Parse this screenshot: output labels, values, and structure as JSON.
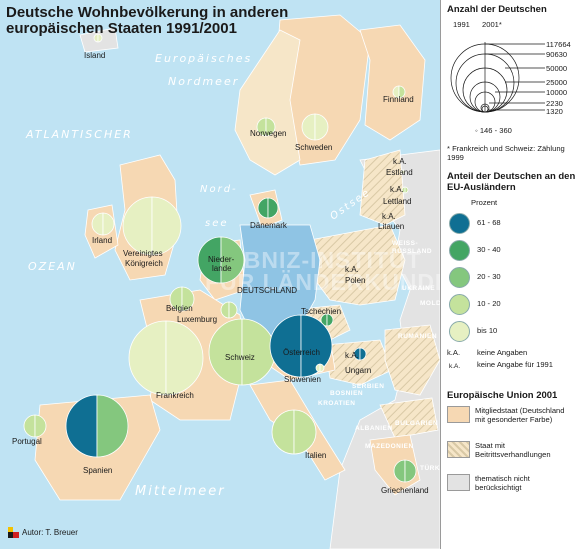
{
  "title": "Deutsche Wohnbevölkerung in anderen europäischen Staaten 1991/2001",
  "seas": {
    "europ": "Europäisches",
    "nordmeer": "Nordmeer",
    "atlant": "ATLANTISCHER",
    "ozean": "OZEAN",
    "nordsee1": "Nord-",
    "nordsee2": "see",
    "ostsee": "Ostsee",
    "mittel": "Mittelmeer"
  },
  "watermark": {
    "line1": "LEIBNIZ-INSTITUT",
    "line2": "FÜR LÄNDERKUNDE"
  },
  "countries": {
    "island": "Island",
    "norwegen": "Norwegen",
    "schweden": "Schweden",
    "finnland": "Finnland",
    "estland": "Estland",
    "lettland": "Lettland",
    "litauen": "Litauen",
    "daenemark": "Dänemark",
    "irland": "Irland",
    "uk": "Vereinigtes Königreich",
    "niederlande": "Nieder-lande",
    "deutschland": "DEUTSCHLAND",
    "polen": "Polen",
    "belgien": "Belgien",
    "luxemburg": "Luxemburg",
    "tschechien": "Tschechien",
    "frankreich": "Frankreich",
    "schweiz": "Schweiz",
    "oesterreich": "Österreich",
    "slowenien": "Slowenien",
    "ungarn": "Ungarn",
    "portugal": "Portugal",
    "spanien": "Spanien",
    "italien": "Italien",
    "griechenland": "Griechenland",
    "ka": "k.A."
  },
  "minor_labels": [
    "WEISS-",
    "RUSSLAND",
    "UKRAINE",
    "RUMÄNIEN",
    "SERBIEN",
    "BOSNIEN",
    "KROATIEN",
    "MOLDAU",
    "BULGARIEN",
    "ALBANIEN",
    "MAZEDONIEN",
    "TÜRKEI"
  ],
  "legend": {
    "anzahl_title": "Anzahl der Deutschen",
    "years": [
      "1991",
      "2001*"
    ],
    "size_values": [
      "117664",
      "90630",
      "50000",
      "25000",
      "10000",
      "2230",
      "1320"
    ],
    "small_range": "146 - 360",
    "footnote": "* Frankreich und Schweiz: Zählung 1999",
    "anteil_title": "Anteil der Deutschen an den EU-Ausländern",
    "prozent": "Prozent",
    "classes": [
      {
        "label": "61 - 68",
        "color": "#0f6f93"
      },
      {
        "label": "30 - 40",
        "color": "#43a564"
      },
      {
        "label": "20 - 30",
        "color": "#84c77e"
      },
      {
        "label": "10 - 20",
        "color": "#c4e29c"
      },
      {
        "label": "bis 10",
        "color": "#e6f0c2"
      }
    ],
    "ka_label": "k.A.",
    "ka_text": "keine Angaben",
    "ka_small": "k.A.",
    "ka_small_text": "keine Angabe für 1991",
    "eu_title": "Europäische Union 2001",
    "eu_items": [
      {
        "label": "Mitgliedstaat (Deutschland mit gesonderter Farbe)",
        "color": "#f6d8b3"
      },
      {
        "label": "Staat mit Beitrittsverhandlungen",
        "color": "#f6e6c8"
      },
      {
        "label": "thematisch nicht berücksichtigt",
        "color": "#e3e3e3"
      }
    ]
  },
  "author": "Autor: T. Breuer",
  "colors": {
    "sea": "#bfe3f3",
    "eu_member": "#f6d8b3",
    "germany": "#8fc4e4",
    "candidate": "#f6e6c8",
    "other": "#e3e3e3"
  }
}
